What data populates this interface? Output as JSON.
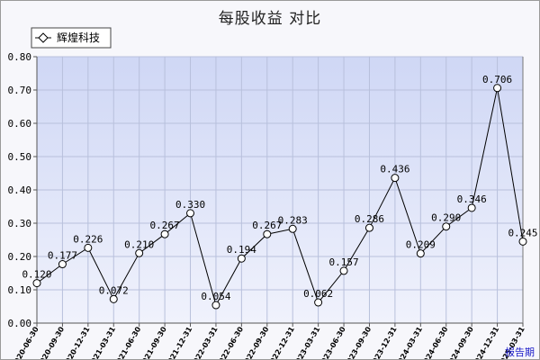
{
  "chart_data": {
    "type": "line",
    "title": "每股收益  对比",
    "x_axis_unit": "报告期",
    "categories": [
      "2020-06-30",
      "2020-09-30",
      "2020-12-31",
      "2021-03-31",
      "2021-06-30",
      "2021-09-30",
      "2021-12-31",
      "2022-03-31",
      "2022-06-30",
      "2022-09-30",
      "2022-12-31",
      "2023-03-31",
      "2023-06-30",
      "2023-09-30",
      "2023-12-31",
      "2024-03-31",
      "2024-06-30",
      "2024-09-30",
      "2024-12-31",
      "2025-03-31"
    ],
    "series": [
      {
        "name": "辉煌科技",
        "values": [
          0.12,
          0.177,
          0.226,
          0.072,
          0.21,
          0.267,
          0.33,
          0.054,
          0.194,
          0.267,
          0.283,
          0.062,
          0.157,
          0.286,
          0.436,
          0.209,
          0.29,
          0.346,
          0.706,
          0.245
        ],
        "labels": [
          "0.120",
          "0.177",
          "0.226",
          "0.072",
          "0.210",
          "0.267",
          "0.330",
          "0.054",
          "0.194",
          "0.267",
          "0.283",
          "0.062",
          "0.157",
          "0.286",
          "0.436",
          "0.209",
          "0.290",
          "0.346",
          "0.706",
          "0.245"
        ]
      }
    ],
    "y_ticks": [
      "0.00",
      "0.10",
      "0.20",
      "0.30",
      "0.40",
      "0.50",
      "0.60",
      "0.70",
      "0.80"
    ],
    "ylim": [
      0,
      0.8
    ],
    "grid": true,
    "legend_position": "top-left",
    "colors": {
      "plot_bg": "#dde3f8",
      "grid": "#b8c0dc",
      "line": "#000000",
      "marker_fill": "#ffffff"
    }
  }
}
